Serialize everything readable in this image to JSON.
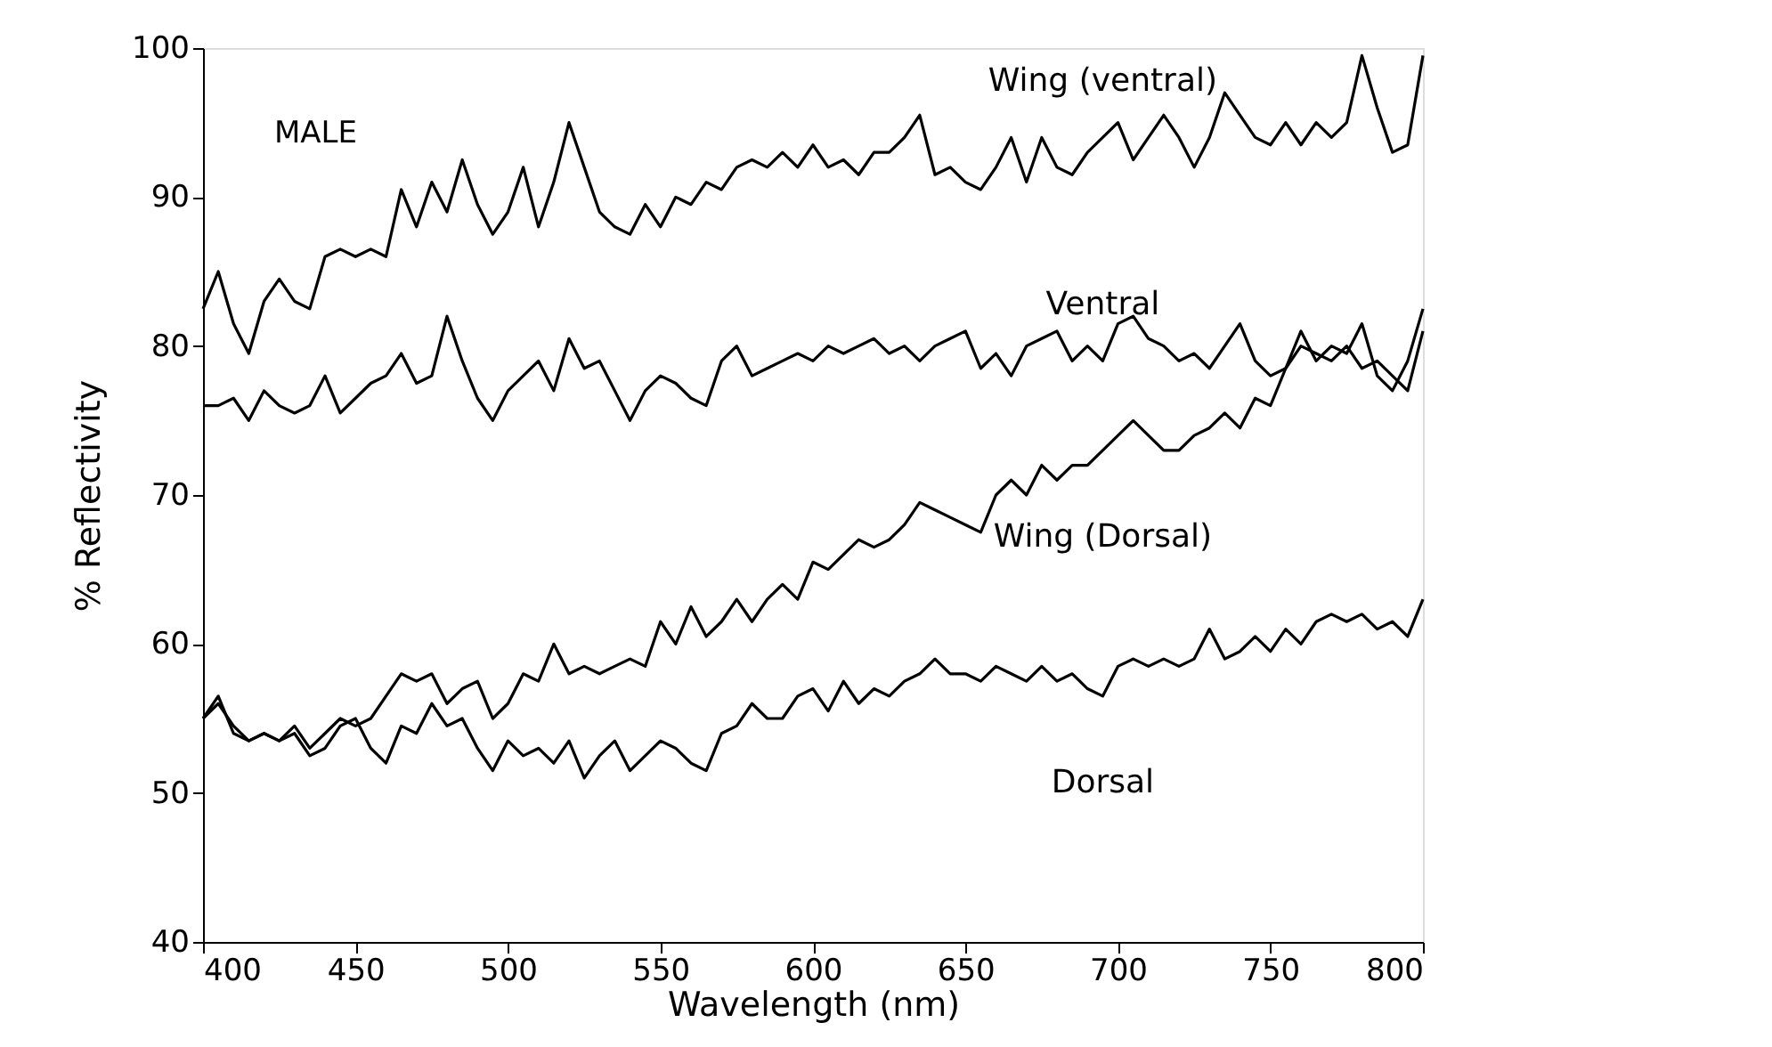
{
  "chart_data": {
    "type": "line",
    "xlabel": "Wavelength (nm)",
    "ylabel": "% Reflectivity",
    "xlim": [
      400,
      800
    ],
    "ylim": [
      40,
      100
    ],
    "xticks": [
      400,
      450,
      500,
      550,
      600,
      650,
      700,
      750,
      800
    ],
    "yticks": [
      40,
      50,
      60,
      70,
      80,
      90,
      100
    ],
    "grid": false,
    "marker": "none",
    "line_style": "solid",
    "annotations": [
      "MALE"
    ],
    "x": [
      400,
      405,
      410,
      415,
      420,
      425,
      430,
      435,
      440,
      445,
      450,
      455,
      460,
      465,
      470,
      475,
      480,
      485,
      490,
      495,
      500,
      505,
      510,
      515,
      520,
      525,
      530,
      535,
      540,
      545,
      550,
      555,
      560,
      565,
      570,
      575,
      580,
      585,
      590,
      595,
      600,
      605,
      610,
      615,
      620,
      625,
      630,
      635,
      640,
      645,
      650,
      655,
      660,
      665,
      670,
      675,
      680,
      685,
      690,
      695,
      700,
      705,
      710,
      715,
      720,
      725,
      730,
      735,
      740,
      745,
      750,
      755,
      760,
      765,
      770,
      775,
      780,
      785,
      790,
      795,
      800
    ],
    "series": [
      {
        "name": "Wing (ventral)",
        "color": "#000000",
        "values": [
          82.5,
          85,
          81.5,
          79.5,
          83,
          84.5,
          83,
          82.5,
          86,
          86.5,
          86,
          86.5,
          86,
          90.5,
          88,
          91,
          89,
          92.5,
          89.5,
          87.5,
          89,
          92,
          88,
          91,
          95,
          92,
          89,
          88,
          87.5,
          89.5,
          88,
          90,
          89.5,
          91,
          90.5,
          92,
          92.5,
          92,
          93,
          92,
          93.5,
          92,
          92.5,
          91.5,
          93,
          93,
          94,
          95.5,
          91.5,
          92,
          91,
          90.5,
          92,
          94,
          91,
          94,
          92,
          91.5,
          93,
          94,
          95,
          92.5,
          94,
          95.5,
          94,
          92,
          94,
          97,
          95.5,
          94,
          93.5,
          95,
          93.5,
          95,
          94,
          95,
          99.5,
          96,
          93,
          93.5,
          99.5
        ]
      },
      {
        "name": "Ventral",
        "color": "#000000",
        "values": [
          76,
          76,
          76.5,
          75,
          77,
          76,
          75.5,
          76,
          78,
          75.5,
          76.5,
          77.5,
          78,
          79.5,
          77.5,
          78,
          82,
          79,
          76.5,
          75,
          77,
          78,
          79,
          77,
          80.5,
          78.5,
          79,
          77,
          75,
          77,
          78,
          77.5,
          76.5,
          76,
          79,
          80,
          78,
          78.5,
          79,
          79.5,
          79,
          80,
          79.5,
          80,
          80.5,
          79.5,
          80,
          79,
          80,
          80.5,
          81,
          78.5,
          79.5,
          78,
          80,
          80.5,
          81,
          79,
          80,
          79,
          81.5,
          82,
          80.5,
          80,
          79,
          79.5,
          78.5,
          80,
          81.5,
          79,
          78,
          78.5,
          81,
          79,
          80,
          79.5,
          81.5,
          78,
          77,
          79,
          82.5
        ]
      },
      {
        "name": "Wing (Dorsal)",
        "color": "#000000",
        "values": [
          55,
          56,
          54.5,
          53.5,
          54,
          53.5,
          54.5,
          53,
          54,
          55,
          54.5,
          55,
          56.5,
          58,
          57.5,
          58,
          56,
          57,
          57.5,
          55,
          56,
          58,
          57.5,
          60,
          58,
          58.5,
          58,
          58.5,
          59,
          58.5,
          61.5,
          60,
          62.5,
          60.5,
          61.5,
          63,
          61.5,
          63,
          64,
          63,
          65.5,
          65,
          66,
          67,
          66.5,
          67,
          68,
          69.5,
          69,
          68.5,
          68,
          67.5,
          70,
          71,
          70,
          72,
          71,
          72,
          72,
          73,
          74,
          75,
          74,
          73,
          73,
          74,
          74.5,
          75.5,
          74.5,
          76.5,
          76,
          78.5,
          80,
          79.5,
          79,
          80,
          78.5,
          79,
          78,
          77,
          81
        ]
      },
      {
        "name": "Dorsal",
        "color": "#000000",
        "values": [
          55,
          56.5,
          54,
          53.5,
          54,
          53.5,
          54,
          52.5,
          53,
          54.5,
          55,
          53,
          52,
          54.5,
          54,
          56,
          54.5,
          55,
          53,
          51.5,
          53.5,
          52.5,
          53,
          52,
          53.5,
          51,
          52.5,
          53.5,
          51.5,
          52.5,
          53.5,
          53,
          52,
          51.5,
          54,
          54.5,
          56,
          55,
          55,
          56.5,
          57,
          55.5,
          57.5,
          56,
          57,
          56.5,
          57.5,
          58,
          59,
          58,
          58,
          57.5,
          58.5,
          58,
          57.5,
          58.5,
          57.5,
          58,
          57,
          56.5,
          58.5,
          59,
          58.5,
          59,
          58.5,
          59,
          61,
          59,
          59.5,
          60.5,
          59.5,
          61,
          60,
          61.5,
          62,
          61.5,
          62,
          61,
          61.5,
          60.5,
          63
        ]
      }
    ]
  }
}
